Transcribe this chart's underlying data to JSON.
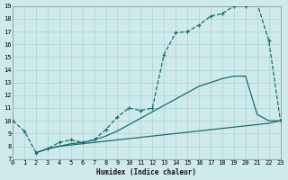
{
  "xlabel": "Humidex (Indice chaleur)",
  "xlim": [
    0,
    23
  ],
  "ylim": [
    7,
    19
  ],
  "yticks": [
    7,
    8,
    9,
    10,
    11,
    12,
    13,
    14,
    15,
    16,
    17,
    18,
    19
  ],
  "xticks": [
    0,
    1,
    2,
    3,
    4,
    5,
    6,
    7,
    8,
    9,
    10,
    11,
    12,
    13,
    14,
    15,
    16,
    17,
    18,
    19,
    20,
    21,
    22,
    23
  ],
  "background_color": "#ceeaea",
  "grid_color": "#aad4d4",
  "line_color": "#1a6e6a",
  "top_x": [
    0,
    1,
    2,
    3,
    4,
    5,
    6,
    7,
    8,
    9,
    10,
    11,
    12,
    13,
    14,
    15,
    16,
    17,
    18,
    19,
    20,
    21,
    22,
    23
  ],
  "top_y": [
    10.0,
    9.2,
    7.5,
    7.8,
    8.3,
    8.5,
    8.3,
    8.5,
    9.3,
    10.3,
    11.0,
    10.8,
    11.0,
    15.2,
    16.9,
    17.0,
    17.5,
    18.2,
    18.4,
    19.0,
    19.0,
    19.2,
    16.3,
    10.0
  ],
  "mid_x": [
    2,
    3,
    4,
    5,
    6,
    7,
    8,
    9,
    10,
    11,
    12,
    13,
    14,
    15,
    16,
    17,
    18,
    19,
    20,
    21,
    22,
    23
  ],
  "mid_y": [
    7.5,
    7.8,
    8.0,
    8.2,
    8.3,
    8.5,
    8.8,
    9.2,
    9.7,
    10.2,
    10.7,
    11.2,
    11.7,
    12.2,
    12.7,
    13.0,
    13.3,
    13.5,
    13.5,
    10.5,
    10.0,
    10.0
  ],
  "bot_x": [
    2,
    3,
    4,
    5,
    6,
    7,
    8,
    9,
    10,
    11,
    12,
    13,
    14,
    15,
    16,
    17,
    18,
    19,
    20,
    21,
    22,
    23
  ],
  "bot_y": [
    7.5,
    7.8,
    8.0,
    8.1,
    8.2,
    8.3,
    8.4,
    8.5,
    8.6,
    8.7,
    8.8,
    8.9,
    9.0,
    9.1,
    9.2,
    9.3,
    9.4,
    9.5,
    9.6,
    9.7,
    9.8,
    10.0
  ]
}
